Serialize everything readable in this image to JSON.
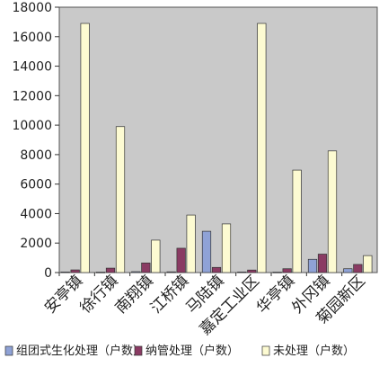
{
  "chart_data": {
    "type": "bar",
    "ylim": [
      0,
      18000
    ],
    "yticks": [
      0,
      2000,
      4000,
      6000,
      8000,
      10000,
      12000,
      14000,
      16000,
      18000
    ],
    "ytick_labels": [
      "0",
      "2000",
      "4000",
      "6000",
      "8000",
      "10000",
      "12000",
      "14000",
      "16000",
      "18000"
    ],
    "categories": [
      "安亭镇",
      "徐行镇",
      "南翔镇",
      "江桥镇",
      "马陆镇",
      "嘉定工业区",
      "华亭镇",
      "外冈镇",
      "菊园新区"
    ],
    "series": [
      {
        "name": "组团式生化处理（户数）",
        "color": "#8fa2d6",
        "values": [
          40,
          30,
          60,
          50,
          2800,
          40,
          30,
          900,
          260
        ]
      },
      {
        "name": "纳管处理（户数）",
        "color": "#8a3b63",
        "values": [
          180,
          300,
          650,
          1650,
          350,
          170,
          260,
          1250,
          550
        ]
      },
      {
        "name": "未处理（户数）",
        "color": "#fdfbd2",
        "values": [
          16900,
          9900,
          2200,
          3900,
          3300,
          16900,
          6950,
          8250,
          1150
        ]
      }
    ],
    "grid": false,
    "legend_position": "bottom",
    "plot_background": "#c9c9c9"
  }
}
